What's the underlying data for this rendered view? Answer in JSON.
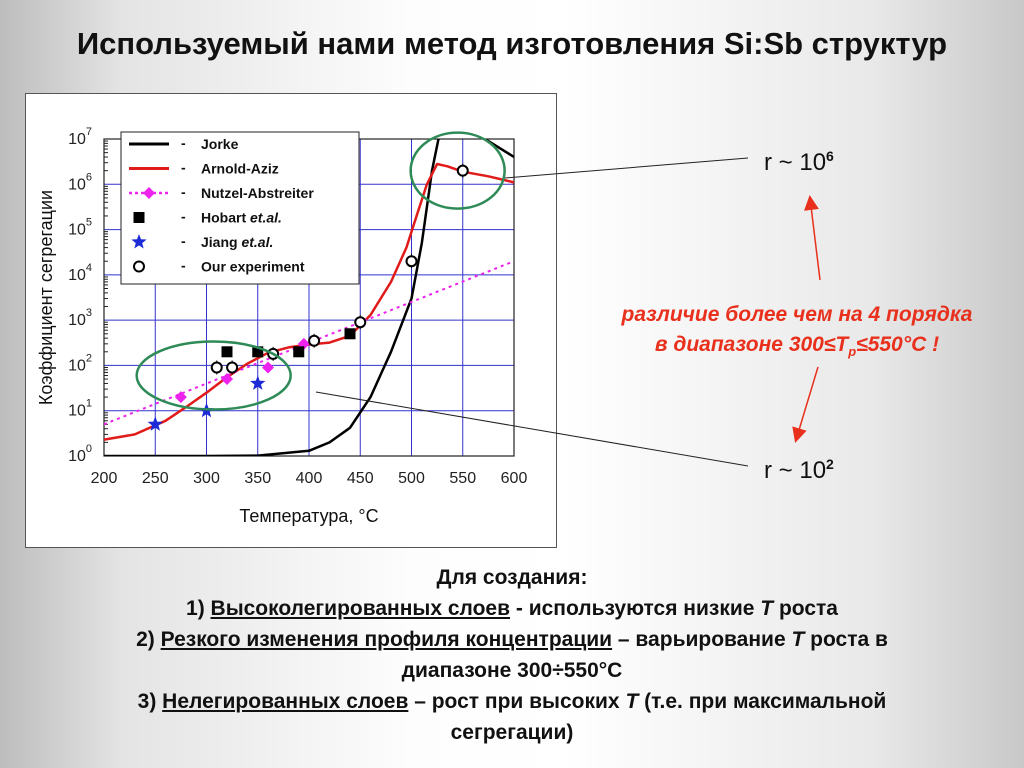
{
  "slide": {
    "title": "Используемый нами метод изготовления Si:Sb структур"
  },
  "chart_data": {
    "type": "line",
    "xlabel": "Температура, °C",
    "ylabel": "Коэффициент сегрегации",
    "xlim": [
      200,
      600
    ],
    "ylim": [
      1,
      10000000
    ],
    "y_scale": "log",
    "grid": true,
    "x_ticks": [
      "200",
      "250",
      "300",
      "350",
      "400",
      "450",
      "500",
      "550",
      "600"
    ],
    "y_ticks": [
      {
        "base": "10",
        "exp": "0"
      },
      {
        "base": "10",
        "exp": "1"
      },
      {
        "base": "10",
        "exp": "2"
      },
      {
        "base": "10",
        "exp": "3"
      },
      {
        "base": "10",
        "exp": "4"
      },
      {
        "base": "10",
        "exp": "5"
      },
      {
        "base": "10",
        "exp": "6"
      },
      {
        "base": "10",
        "exp": "7"
      }
    ],
    "legend_position": "top-left",
    "series": [
      {
        "name": "Jorke",
        "style": "line",
        "color": "#000000",
        "x": [
          200,
          300,
          350,
          400,
          420,
          440,
          460,
          480,
          500,
          510,
          520,
          530,
          550,
          575,
          600
        ],
        "y": [
          1.0,
          1.0,
          1.02,
          1.3,
          2.0,
          4.2,
          20,
          200,
          3000,
          50000,
          2000000,
          26000000,
          18000000,
          9000000,
          4000000
        ]
      },
      {
        "name": "Arnold-Aziz",
        "style": "line",
        "color": "#e11a1a",
        "x": [
          200,
          230,
          260,
          280,
          300,
          320,
          340,
          360,
          380,
          400,
          420,
          440,
          460,
          480,
          495,
          505,
          515,
          525,
          535,
          550,
          575,
          600
        ],
        "y": [
          2.3,
          3.0,
          6.0,
          12,
          25,
          55,
          110,
          190,
          250,
          290,
          320,
          450,
          1300,
          7000,
          40000,
          200000,
          1000000,
          2800000,
          2500000,
          1900000,
          1500000,
          1100000
        ]
      },
      {
        "name": "Nutzel-Abstreiter",
        "style": "dashed",
        "color": "#ee22ee",
        "x": [
          200,
          600
        ],
        "y": [
          5,
          20000
        ]
      },
      {
        "name": "Nutzel-Abstreiter points",
        "style": "diamond",
        "color": "#ee22ee",
        "x": [
          275,
          320,
          360,
          395
        ],
        "y": [
          20,
          50,
          90,
          300
        ]
      },
      {
        "name": "Hobart et.al.",
        "style": "square",
        "color": "#000000",
        "x": [
          320,
          350,
          390,
          440
        ],
        "y": [
          200,
          200,
          200,
          500
        ]
      },
      {
        "name": "Jiang et.al.",
        "style": "star",
        "color": "#1c2bd6",
        "x": [
          250,
          300,
          350
        ],
        "y": [
          5,
          10,
          40
        ]
      },
      {
        "name": "Our experiment",
        "style": "circle",
        "color": "#000000",
        "x": [
          310,
          325,
          365,
          405,
          450,
          500,
          550
        ],
        "y": [
          90,
          90,
          180,
          350,
          900,
          20000,
          2000000
        ]
      }
    ],
    "legend": [
      {
        "sym": "line-black",
        "dash": "-",
        "label": "Jorke",
        "italic": ""
      },
      {
        "sym": "line-red",
        "dash": "-",
        "label": "Arnold-Aziz",
        "italic": ""
      },
      {
        "sym": "dashed-diamond",
        "dash": "-",
        "label": "Nutzel-Abstreiter",
        "italic": ""
      },
      {
        "sym": "square",
        "dash": "-",
        "label": "Hobart ",
        "italic": "et.al."
      },
      {
        "sym": "star",
        "dash": "-",
        "label": "Jiang ",
        "italic": "et.al."
      },
      {
        "sym": "circle",
        "dash": "-",
        "label": "Our experiment",
        "italic": ""
      }
    ],
    "annotations": [
      {
        "shape": "ellipse",
        "color": "#2e8b57",
        "around_x": [
          265,
          355
        ],
        "label": "low-T group"
      },
      {
        "shape": "ellipse",
        "color": "#2e8b57",
        "around_x": [
          540,
          575
        ],
        "label": "high-T group"
      }
    ]
  },
  "annotations": {
    "r_high": {
      "prefix": "r ~ 10",
      "exp": "6"
    },
    "r_low": {
      "prefix": "r ~ 10",
      "exp": "2"
    },
    "note_line1": "различие более чем на 4 порядка",
    "note_line2_a": "в диапазоне 300≤T",
    "note_line2_sub": "p",
    "note_line2_b": "≤550°C !",
    "arrow_color": "#e8301c"
  },
  "bottom_text": {
    "heading": "Для создания:",
    "item1_num": "1) ",
    "item1_u": "Высоколегированных слоев",
    "item1_rest_a": "  - используются низкие ",
    "item1_rest_i": "T",
    "item1_rest_b": " роста",
    "item2_num": "2) ",
    "item2_u": "Резкого изменения профиля концентрации",
    "item2_rest_a": " – варьирование ",
    "item2_rest_i": "T",
    "item2_rest_b": " роста в",
    "item2_line2": "диапазоне 300÷550°С",
    "item3_num": "3) ",
    "item3_u": "Нелегированных слоев",
    "item3_rest_a": " – рост при высоких ",
    "item3_rest_i": "T",
    "item3_rest_b": " (т.е. при максимальной",
    "item3_line2": "сегрегации)"
  }
}
